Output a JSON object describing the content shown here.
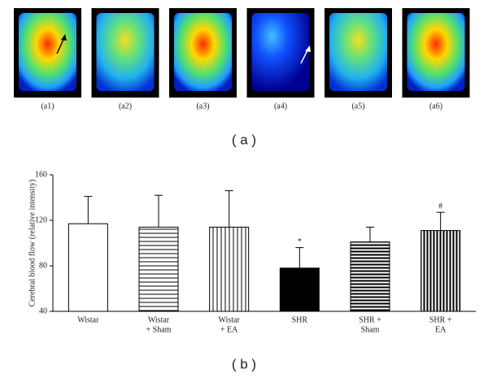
{
  "panel_a": {
    "labels": [
      "(a1)",
      "(a2)",
      "(a3)",
      "(a4)",
      "(a5)",
      "(a6)"
    ],
    "caption": "( a )"
  },
  "panel_b": {
    "caption": "( b )"
  },
  "chart_data": {
    "type": "bar",
    "y_label": "Cerebral blood flow (relative intensity)",
    "categories": [
      [
        "Wistar"
      ],
      [
        "Wistar",
        "+ Sham"
      ],
      [
        "Wistar",
        "+ EA"
      ],
      [
        "SHR"
      ],
      [
        "SHR +",
        "Sham"
      ],
      [
        "SHR +",
        "EA"
      ]
    ],
    "values": [
      117,
      114,
      114,
      78,
      101,
      111
    ],
    "errors": [
      24,
      28,
      32,
      18,
      13,
      16
    ],
    "markers": [
      null,
      null,
      null,
      "*",
      null,
      "#"
    ],
    "patterns": [
      "none",
      "hlines-thin",
      "vlines-thin",
      "solid",
      "hlines-thick",
      "vlines-thick"
    ],
    "color": "#000000",
    "ylim": [
      40,
      160
    ],
    "yticks": [
      40,
      80,
      120,
      160
    ],
    "grid": false
  }
}
